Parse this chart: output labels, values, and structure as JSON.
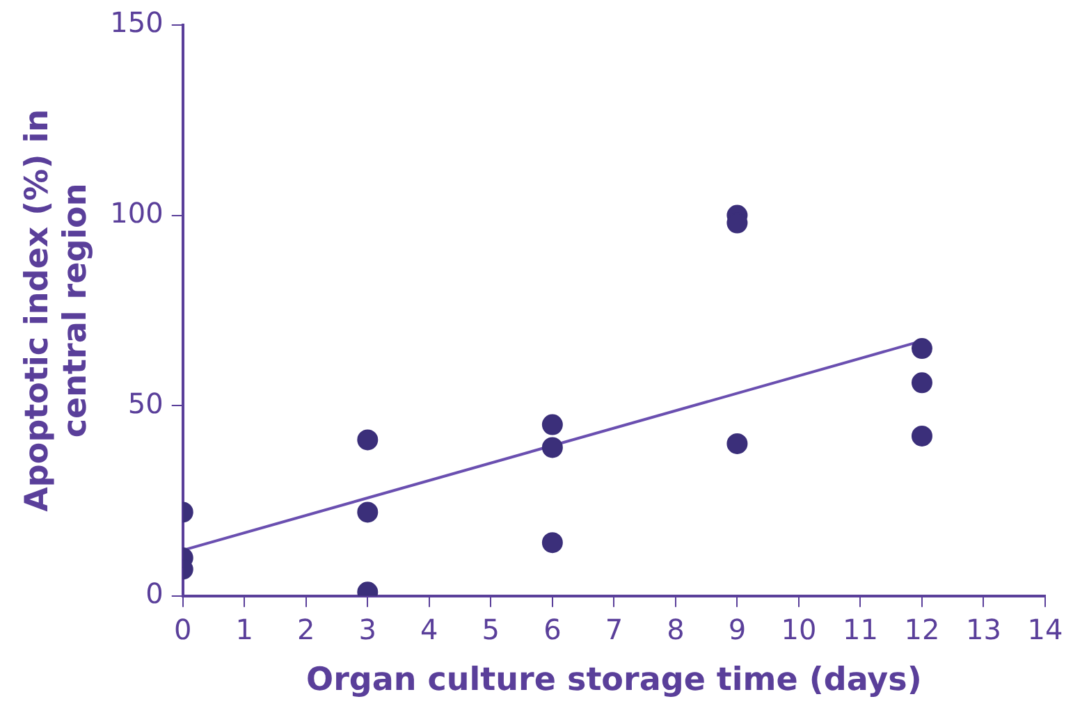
{
  "chart_data": {
    "type": "scatter",
    "xlabel": "Organ culture storage time (days)",
    "ylabel": "Apoptotic index (%) in central region",
    "xlim": [
      0,
      14
    ],
    "xticks": [
      0,
      1,
      2,
      3,
      4,
      5,
      6,
      7,
      8,
      9,
      10,
      11,
      12,
      13,
      14
    ],
    "ylim": [
      0,
      150
    ],
    "yticks": [
      0,
      50,
      100,
      150
    ],
    "grid": false,
    "legend": false,
    "marker": "circle",
    "series": [
      {
        "color": "#3b2f7a",
        "x": [
          0,
          0,
          0,
          3,
          3,
          3,
          6,
          6,
          6,
          9,
          9,
          9,
          12,
          12,
          12
        ],
        "values": [
          22,
          10,
          7,
          41,
          22,
          1,
          45,
          39,
          14,
          100,
          98,
          40,
          65,
          56,
          42
        ]
      },
      {
        "type": "line",
        "color": "#6a4fb0",
        "marker": "none",
        "x": [
          0,
          12
        ],
        "values": [
          12,
          67
        ]
      }
    ]
  }
}
